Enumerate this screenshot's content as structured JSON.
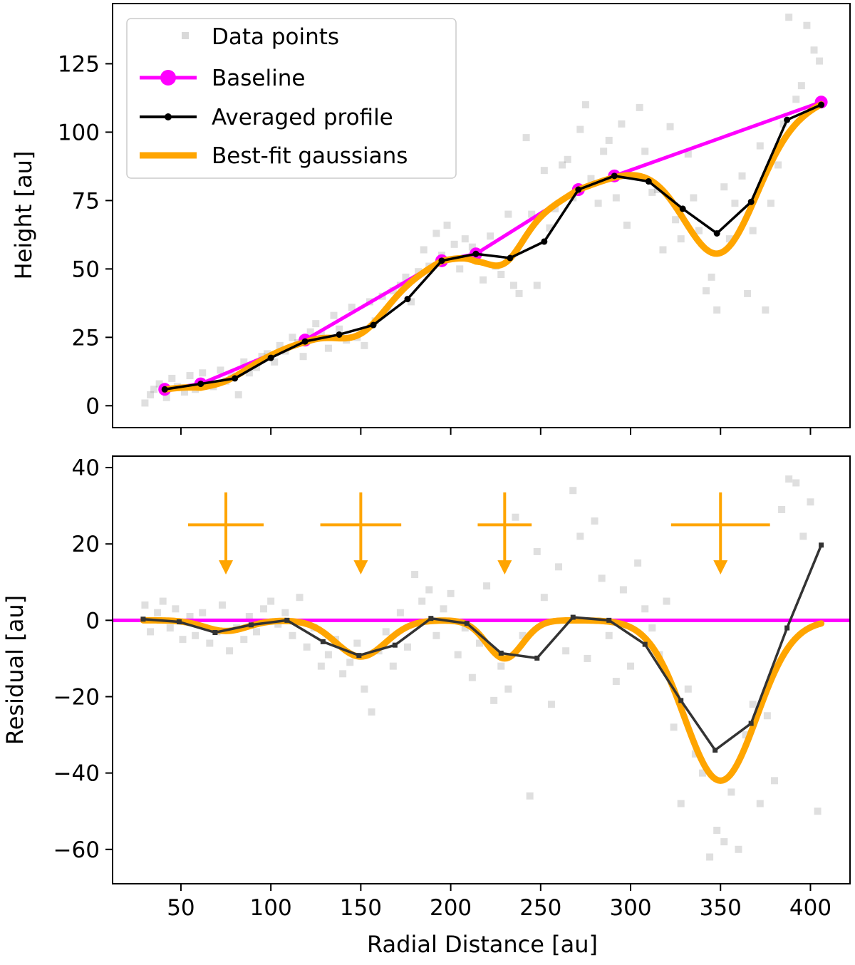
{
  "chart_data": [
    {
      "type": "scatter+line",
      "title": "",
      "xlabel": "",
      "ylabel": "Height [au]",
      "xlim": [
        12,
        422
      ],
      "ylim": [
        -8,
        147
      ],
      "x_ticks": [
        50,
        100,
        150,
        200,
        250,
        300,
        350,
        400
      ],
      "x_tick_labels_shown": false,
      "y_ticks": [
        0,
        25,
        50,
        75,
        100,
        125
      ],
      "y_tick_labels": [
        "0",
        "25",
        "50",
        "75",
        "100",
        "125"
      ],
      "legend": {
        "location": "upper-left",
        "entries": [
          "Data points",
          "Baseline",
          "Averaged profile",
          "Best-fit gaussians"
        ]
      },
      "series": [
        {
          "name": "Baseline",
          "color": "#ff00ff",
          "x": [
            41,
            61,
            119,
            195,
            214,
            271,
            291,
            406
          ],
          "y": [
            6,
            8,
            24,
            53,
            55.5,
            79,
            84,
            111
          ]
        },
        {
          "name": "Averaged profile",
          "color": "#000000",
          "x": [
            41,
            61,
            80,
            100,
            119,
            138,
            157,
            176,
            195,
            214,
            233,
            252,
            271,
            291,
            310,
            329,
            348,
            367,
            387,
            406
          ],
          "y": [
            6,
            8,
            10,
            17.5,
            23.5,
            26,
            29.5,
            39,
            53,
            55.5,
            54,
            60,
            79,
            84,
            82,
            72,
            63,
            74.5,
            104.5,
            110
          ]
        },
        {
          "name": "Best-fit gaussians",
          "color": "#ffa500",
          "model": "baseline minus gaussians",
          "gaussians": [
            {
              "center": 75,
              "depth": 2.8,
              "sigma": 12
            },
            {
              "center": 150,
              "depth": 9.5,
              "sigma": 14
            },
            {
              "center": 230,
              "depth": 10,
              "sigma": 10
            },
            {
              "center": 350,
              "depth": 42,
              "sigma": 20
            }
          ]
        },
        {
          "name": "Data points",
          "color": "#808080",
          "note": "scattered measurements (approximate)",
          "x": [
            30,
            33,
            35,
            38,
            42,
            45,
            48,
            52,
            55,
            58,
            62,
            65,
            68,
            72,
            75,
            78,
            82,
            85,
            88,
            92,
            95,
            98,
            102,
            105,
            108,
            112,
            115,
            118,
            122,
            125,
            128,
            132,
            135,
            138,
            142,
            145,
            148,
            152,
            155,
            158,
            162,
            165,
            168,
            172,
            175,
            178,
            182,
            185,
            188,
            192,
            195,
            198,
            202,
            205,
            208,
            212,
            215,
            218,
            222,
            225,
            228,
            232,
            235,
            238,
            242,
            245,
            248,
            252,
            255,
            258,
            262,
            265,
            268,
            272,
            275,
            278,
            282,
            285,
            288,
            292,
            295,
            298,
            302,
            305,
            308,
            312,
            315,
            318,
            322,
            325,
            328,
            332,
            335,
            338,
            342,
            345,
            348,
            352,
            355,
            358,
            362,
            365,
            368,
            372,
            375,
            378,
            382,
            385,
            388,
            392,
            395,
            398,
            402,
            405
          ],
          "y": [
            1,
            4,
            6,
            8,
            3,
            10,
            7,
            5,
            11,
            6,
            12,
            8,
            7,
            13,
            9,
            11,
            4,
            16,
            12,
            14,
            18,
            19,
            16,
            22,
            20,
            25,
            23,
            18,
            27,
            30,
            26,
            21,
            33,
            28,
            24,
            36,
            25,
            22,
            38,
            31,
            40,
            35,
            42,
            44,
            47,
            38,
            49,
            57,
            51,
            63,
            55,
            66,
            59,
            50,
            61,
            58,
            54,
            46,
            62,
            51,
            48,
            70,
            44,
            41,
            98,
            70,
            44,
            86,
            65,
            72,
            88,
            90,
            76,
            101,
            110,
            83,
            74,
            93,
            97,
            76,
            103,
            66,
            84,
            109,
            93,
            78,
            79,
            57,
            102,
            68,
            61,
            92,
            76,
            64,
            42,
            47,
            35,
            80,
            61,
            74,
            84,
            41,
            64,
            95,
            35,
            74,
            88,
            103,
            142,
            112,
            117,
            139,
            130,
            126
          ]
        }
      ]
    },
    {
      "type": "scatter+line",
      "title": "",
      "xlabel": "Radial Distance [au]",
      "ylabel": "Residual [au]",
      "xlim": [
        12,
        422
      ],
      "ylim": [
        -69,
        43
      ],
      "x_ticks": [
        50,
        100,
        150,
        200,
        250,
        300,
        350,
        400
      ],
      "x_tick_labels": [
        "50",
        "100",
        "150",
        "200",
        "250",
        "300",
        "350",
        "400"
      ],
      "y_ticks": [
        -60,
        -40,
        -20,
        0,
        20,
        40
      ],
      "y_tick_labels": [
        "−60",
        "−40",
        "−20",
        "0",
        "20",
        "40"
      ],
      "series": [
        {
          "name": "Baseline",
          "color": "#ff00ff",
          "x": [
            12,
            422
          ],
          "y": [
            0,
            0
          ]
        },
        {
          "name": "Averaged profile",
          "color": "#333333",
          "x": [
            29,
            49,
            69,
            89,
            109,
            129,
            149,
            169,
            189,
            209,
            228,
            248,
            268,
            288,
            308,
            328,
            347,
            367,
            387,
            406
          ],
          "y": [
            0.3,
            -0.4,
            -3.2,
            -1.2,
            0,
            -5.6,
            -9.2,
            -6.5,
            0.5,
            -0.8,
            -8.6,
            -9.9,
            0.8,
            0,
            -6.3,
            -21,
            -34,
            -27,
            -2,
            19.7
          ]
        },
        {
          "name": "Best-fit gaussians",
          "color": "#ffa500",
          "model": "sum of negative gaussians",
          "x_range": [
            29,
            406
          ],
          "gaussians": [
            {
              "center": 75,
              "depth": 2.8,
              "sigma": 12
            },
            {
              "center": 150,
              "depth": 9.5,
              "sigma": 14
            },
            {
              "center": 230,
              "depth": 10,
              "sigma": 10
            },
            {
              "center": 350,
              "depth": 42,
              "sigma": 20
            }
          ]
        },
        {
          "name": "Data points",
          "color": "#808080",
          "note": "scattered residuals (approximate)",
          "x": [
            30,
            33,
            37,
            40,
            44,
            47,
            51,
            55,
            58,
            62,
            66,
            70,
            73,
            77,
            81,
            85,
            88,
            92,
            96,
            100,
            104,
            108,
            112,
            116,
            120,
            124,
            128,
            132,
            136,
            140,
            144,
            148,
            152,
            156,
            160,
            164,
            168,
            172,
            176,
            180,
            184,
            188,
            192,
            196,
            200,
            204,
            208,
            212,
            216,
            220,
            224,
            228,
            232,
            236,
            240,
            244,
            248,
            252,
            256,
            260,
            264,
            268,
            272,
            276,
            280,
            284,
            288,
            292,
            296,
            300,
            304,
            308,
            312,
            316,
            320,
            324,
            328,
            332,
            336,
            340,
            344,
            348,
            352,
            356,
            360,
            364,
            368,
            372,
            376,
            380,
            384,
            388,
            392,
            396,
            400,
            404
          ],
          "y": [
            4,
            -3,
            2,
            5,
            -2,
            3,
            -5,
            1,
            -4,
            2,
            -6,
            -3,
            4,
            -8,
            -2,
            -5,
            1,
            -3,
            3,
            5,
            -1,
            2,
            -4,
            6,
            -7,
            -2,
            -12,
            -9,
            -5,
            -14,
            -11,
            -6,
            -18,
            -24,
            -8,
            -3,
            -12,
            2,
            -7,
            12,
            5,
            8,
            -4,
            3,
            7,
            -9,
            -2,
            -15,
            -6,
            9,
            -21,
            -12,
            -18,
            27,
            -4,
            -46,
            18,
            6,
            -22,
            14,
            -8,
            34,
            22,
            -10,
            26,
            11,
            -4,
            -16,
            8,
            -12,
            15,
            3,
            -2,
            -9,
            5,
            -28,
            -48,
            -18,
            -35,
            -40,
            -62,
            -55,
            -58,
            -45,
            -60,
            -30,
            -22,
            -48,
            -25,
            -42,
            29,
            37,
            36,
            22,
            31,
            -50
          ]
        }
      ],
      "annotations": {
        "gap_markers": [
          {
            "center": 75,
            "half_width": 21,
            "arrow_from": 33.5,
            "arrow_to": 12
          },
          {
            "center": 150,
            "half_width": 22.5,
            "arrow_from": 33.5,
            "arrow_to": 12
          },
          {
            "center": 230,
            "half_width": 15,
            "arrow_from": 33.5,
            "arrow_to": 12
          },
          {
            "center": 350,
            "half_width": 27.5,
            "arrow_from": 33.5,
            "arrow_to": 12
          }
        ],
        "color": "#ffa500"
      }
    }
  ]
}
